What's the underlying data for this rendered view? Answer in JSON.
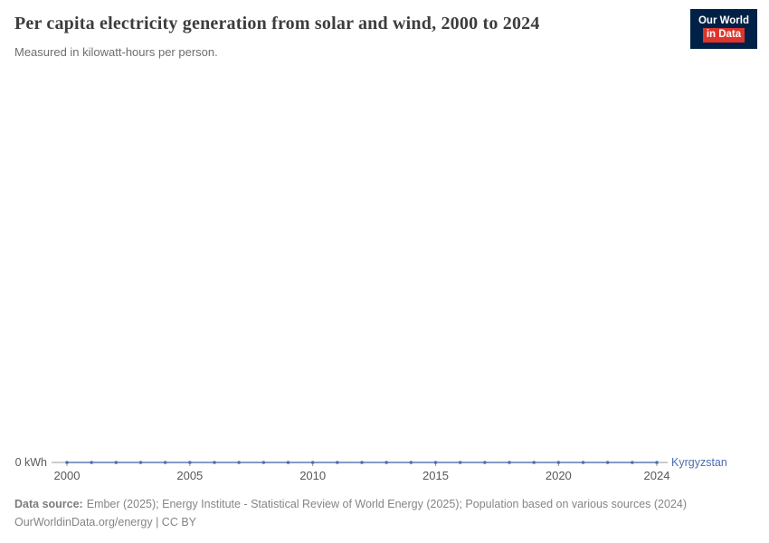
{
  "header": {
    "title": "Per capita electricity generation from solar and wind, 2000 to 2024",
    "subtitle": "Measured in kilowatt-hours per person.",
    "logo": {
      "line1": "Our World",
      "line2": "in Data"
    }
  },
  "chart_data": {
    "type": "line",
    "title": "Per capita electricity generation from solar and wind, 2000 to 2024",
    "subtitle": "Measured in kilowatt-hours per person.",
    "x": [
      2000,
      2001,
      2002,
      2003,
      2004,
      2005,
      2006,
      2007,
      2008,
      2009,
      2010,
      2011,
      2012,
      2013,
      2014,
      2015,
      2016,
      2017,
      2018,
      2019,
      2020,
      2021,
      2022,
      2023,
      2024
    ],
    "x_ticks": [
      2000,
      2005,
      2010,
      2015,
      2020,
      2024
    ],
    "y_axis_tick_label": "0 kWh",
    "ylim": [
      0,
      1
    ],
    "grid": false,
    "legend_position": "right-of-line",
    "series": [
      {
        "name": "Kyrgyzstan",
        "color": "#4c6fb1",
        "values": [
          0,
          0,
          0,
          0,
          0,
          0,
          0,
          0,
          0,
          0,
          0,
          0,
          0,
          0,
          0,
          0,
          0,
          0,
          0,
          0,
          0,
          0,
          0,
          0,
          0
        ]
      }
    ]
  },
  "colors": {
    "brand_navy": "#002147",
    "brand_red": "#dd352b",
    "axis": "#9a9a9a",
    "series_blue": "#4c6fb1"
  },
  "footer": {
    "datasource_label": "Data source:",
    "datasource_text": "Ember (2025); Energy Institute - Statistical Review of World Energy (2025); Population based on various sources (2024)",
    "license_line": "OurWorldinData.org/energy | CC BY"
  }
}
